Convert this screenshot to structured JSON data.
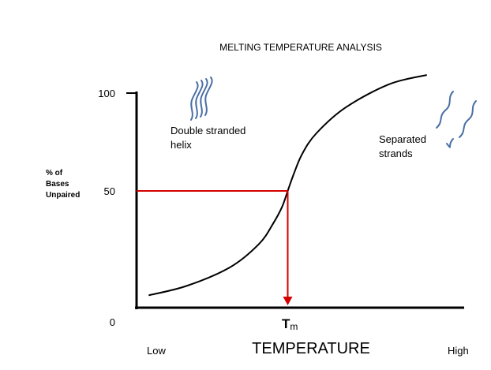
{
  "chart_data": {
    "type": "line",
    "title": "MELTING TEMPERATURE ANALYSIS",
    "ylabel": [
      "% of",
      "Bases",
      "Unpaired"
    ],
    "y_ticks": [
      "100",
      "50",
      "0"
    ],
    "xlabel": "TEMPERATURE",
    "x_ends": {
      "low": "Low",
      "high": "High"
    },
    "tm_label": {
      "main": "T",
      "sub": "m"
    },
    "ylim": [
      0,
      100
    ],
    "xlim": [
      0,
      1
    ],
    "series": [
      {
        "x": [
          0.02,
          0.15,
          0.3,
          0.4,
          0.45,
          0.48,
          0.5,
          0.52,
          0.55,
          0.6,
          0.7,
          0.85,
          0.98
        ],
        "values": [
          5,
          9,
          17,
          27,
          36,
          43,
          50,
          57,
          66,
          75,
          86,
          96,
          100
        ]
      }
    ],
    "tm": {
      "x": 0.5,
      "y": 50
    },
    "annotations": {
      "double": [
        "Double stranded",
        "helix"
      ],
      "separated": [
        "Separated",
        "strands"
      ]
    },
    "colors": {
      "curve": "#000000",
      "tm_lines": "#d40000",
      "axis": "#000000",
      "strand": "#4a6fa5"
    },
    "icons": [
      "double-helix-icon",
      "separated-strand-icon"
    ]
  }
}
